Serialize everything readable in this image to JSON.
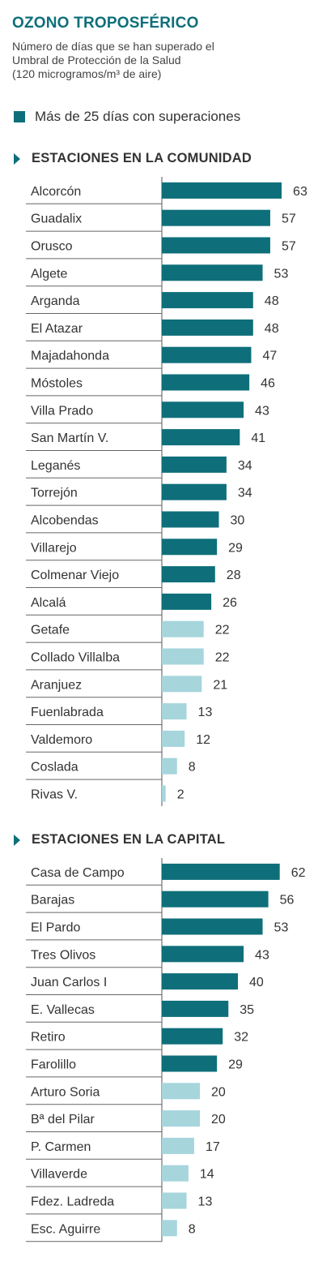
{
  "header": {
    "title": "OZONO TROPOSFÉRICO",
    "subtitle_line1": "Número de días que se han superado el",
    "subtitle_line2": "Umbral de Protección de la Salud",
    "subtitle_line3": "(120 microgramos/m³ de aire)"
  },
  "legend": {
    "label": "Más de 25 días con superaciones",
    "color": "#0e6f7a"
  },
  "colors": {
    "above_threshold": "#0e6f7a",
    "below_threshold": "#a6d5dc",
    "threshold_days": 25
  },
  "chart_data": [
    {
      "type": "bar",
      "orientation": "horizontal",
      "title": "ESTACIONES EN LA COMUNIDAD",
      "categories": [
        "Alcorcón",
        "Guadalix",
        "Orusco",
        "Algete",
        "Arganda",
        "El Atazar",
        "Majadahonda",
        "Móstoles",
        "Villa Prado",
        "San Martín V.",
        "Leganés",
        "Torrejón",
        "Alcobendas",
        "Villarejo",
        "Colmenar Viejo",
        "Alcalá",
        "Getafe",
        "Collado Villalba",
        "Aranjuez",
        "Fuenlabrada",
        "Valdemoro",
        "Coslada",
        "Rivas V."
      ],
      "values": [
        63,
        57,
        57,
        53,
        48,
        48,
        47,
        46,
        43,
        41,
        34,
        34,
        30,
        29,
        28,
        26,
        22,
        22,
        21,
        13,
        12,
        8,
        2
      ]
    },
    {
      "type": "bar",
      "orientation": "horizontal",
      "title": "ESTACIONES EN LA CAPITAL",
      "categories": [
        "Casa de Campo",
        "Barajas",
        "El Pardo",
        "Tres Olivos",
        "Juan Carlos I",
        "E. Vallecas",
        "Retiro",
        "Farolillo",
        "Arturo Soria",
        "Bª del Pilar",
        "P. Carmen",
        "Villaverde",
        "Fdez. Ladreda",
        "Esc. Aguirre"
      ],
      "values": [
        62,
        56,
        53,
        43,
        40,
        35,
        32,
        29,
        20,
        20,
        17,
        14,
        13,
        8
      ]
    }
  ]
}
